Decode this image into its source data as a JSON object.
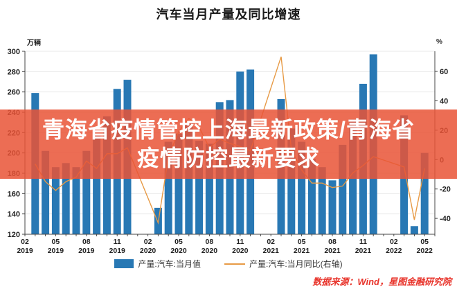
{
  "title": "汽车当月产量及同比增速",
  "overlay": {
    "line1": "青海省疫情管控上海最新政策/青海省",
    "line2": "疫情防控最新要求",
    "bg_color": "#E95436",
    "bg_opacity": 0.85,
    "text_color": "#FFFFFF"
  },
  "source": "数据来源：Wind，星图金融研究院",
  "source_color": "#E8332A",
  "chart_data": {
    "type": "bar+line",
    "title": "汽车当月产量及同比增速",
    "left_axis": {
      "label": "万辆",
      "min": 120,
      "max": 300,
      "ticks": [
        300,
        280,
        260,
        240,
        220,
        200,
        180,
        160,
        140,
        120
      ]
    },
    "right_axis": {
      "label": "%",
      "min": -50.8,
      "max": 73.7,
      "ticks": [
        60,
        40,
        20,
        0,
        -20,
        -40
      ]
    },
    "x_axis_tick_labels": [
      {
        "month": "02",
        "year": "2019"
      },
      {
        "month": "05",
        "year": "2019"
      },
      {
        "month": "08",
        "year": "2019"
      },
      {
        "month": "11",
        "year": "2019"
      },
      {
        "month": "02",
        "year": "2020"
      },
      {
        "month": "05",
        "year": "2020"
      },
      {
        "month": "08",
        "year": "2020"
      },
      {
        "month": "11",
        "year": "2020"
      },
      {
        "month": "02",
        "year": "2021"
      },
      {
        "month": "05",
        "year": "2021"
      },
      {
        "month": "08",
        "year": "2021"
      },
      {
        "month": "11",
        "year": "2021"
      },
      {
        "month": "02",
        "year": "2022"
      },
      {
        "month": "05",
        "year": "2022"
      }
    ],
    "x_months": [
      "2019-03",
      "2019-04",
      "2019-05",
      "2019-06",
      "2019-07",
      "2019-08",
      "2019-09",
      "2019-10",
      "2019-11",
      "2019-12",
      "2020-03",
      "2020-04",
      "2020-05",
      "2020-06",
      "2020-07",
      "2020-08",
      "2020-09",
      "2020-10",
      "2020-11",
      "2020-12",
      "2021-03",
      "2021-04",
      "2021-05",
      "2021-06",
      "2021-07",
      "2021-08",
      "2021-09",
      "2021-10",
      "2021-11",
      "2021-12",
      "2022-03",
      "2022-04",
      "2022-05"
    ],
    "series": [
      {
        "name": "产量:汽车:当月值",
        "type": "bar",
        "y_axis": "left",
        "color": "#2878B4",
        "values": [
          259,
          202,
          186,
          190,
          186,
          202,
          217,
          236,
          263,
          272,
          146,
          211,
          219,
          229,
          212,
          209,
          250,
          252,
          280,
          282,
          253,
          224,
          211,
          194,
          186,
          173,
          208,
          233,
          268,
          297,
          237,
          128,
          200
        ]
      },
      {
        "name": "产量:汽车:当月同比(右轴)",
        "type": "line",
        "y_axis": "right",
        "color": "#E79A45",
        "values": [
          -3,
          -15,
          -21,
          -15,
          -12,
          -1,
          -6,
          4,
          4,
          8,
          -43,
          2,
          19,
          28,
          22,
          8,
          14,
          11,
          9,
          6,
          70,
          7,
          -7,
          -16,
          -16,
          -19,
          -18,
          -9,
          -4,
          2,
          -5,
          -41,
          -6
        ]
      }
    ],
    "grid": "horizontal",
    "grid_color": "#E9E9E9",
    "axis_color": "#444444",
    "legend_position": "bottom"
  }
}
